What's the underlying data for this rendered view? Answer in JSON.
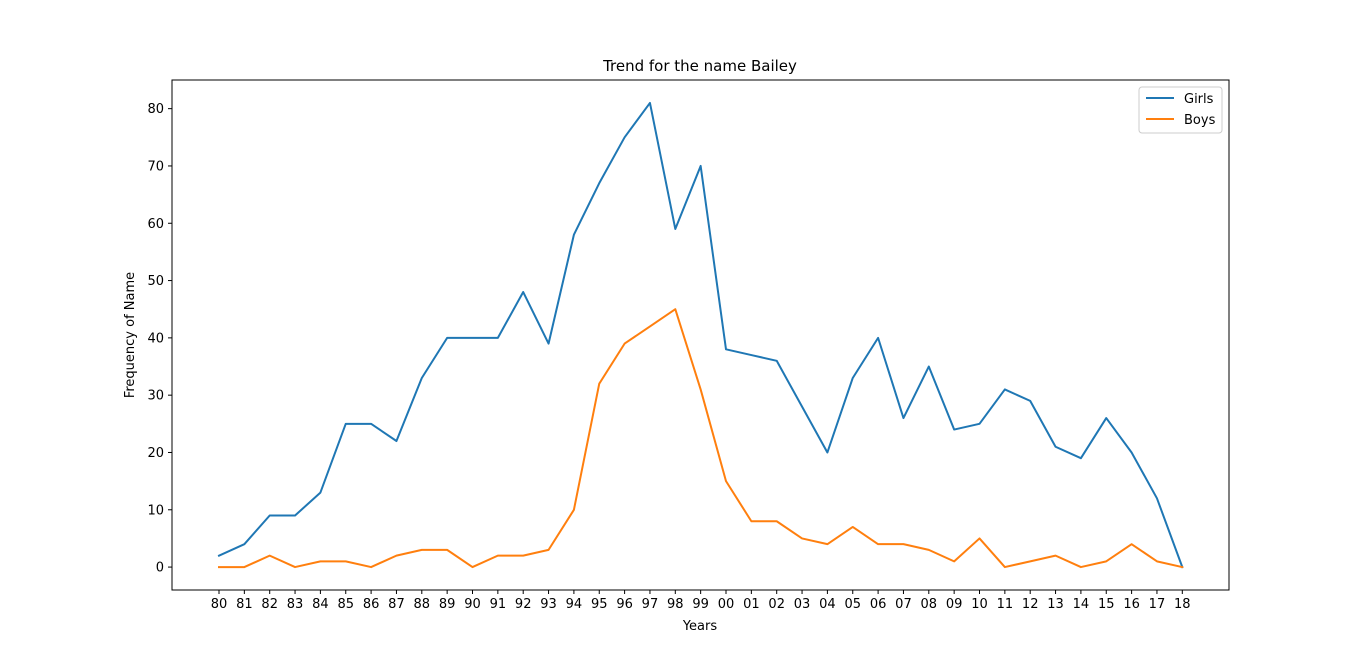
{
  "chart_data": {
    "type": "line",
    "title": "Trend for the name Bailey",
    "xlabel": "Years",
    "ylabel": "Frequency of Name",
    "categories": [
      "80",
      "81",
      "82",
      "83",
      "84",
      "85",
      "86",
      "87",
      "88",
      "89",
      "90",
      "91",
      "92",
      "93",
      "94",
      "95",
      "96",
      "97",
      "98",
      "99",
      "00",
      "01",
      "02",
      "03",
      "04",
      "05",
      "06",
      "07",
      "08",
      "09",
      "10",
      "11",
      "12",
      "13",
      "14",
      "15",
      "16",
      "17",
      "18"
    ],
    "ylim": [
      -4,
      85
    ],
    "yticks": [
      0,
      10,
      20,
      30,
      40,
      50,
      60,
      70,
      80
    ],
    "grid": false,
    "legend_position": "upper right",
    "series": [
      {
        "name": "Girls",
        "color": "#1f77b4",
        "values": [
          2,
          4,
          9,
          9,
          13,
          25,
          25,
          22,
          33,
          40,
          40,
          40,
          48,
          39,
          58,
          67,
          75,
          81,
          59,
          70,
          38,
          37,
          36,
          28,
          20,
          33,
          40,
          26,
          35,
          24,
          25,
          31,
          29,
          21,
          19,
          26,
          20,
          12,
          0
        ]
      },
      {
        "name": "Boys",
        "color": "#ff7f0e",
        "values": [
          0,
          0,
          2,
          0,
          1,
          1,
          0,
          2,
          3,
          3,
          0,
          2,
          2,
          3,
          10,
          32,
          39,
          42,
          45,
          31,
          15,
          8,
          8,
          5,
          4,
          7,
          4,
          4,
          3,
          1,
          5,
          0,
          1,
          2,
          0,
          1,
          4,
          1,
          0
        ]
      }
    ]
  }
}
